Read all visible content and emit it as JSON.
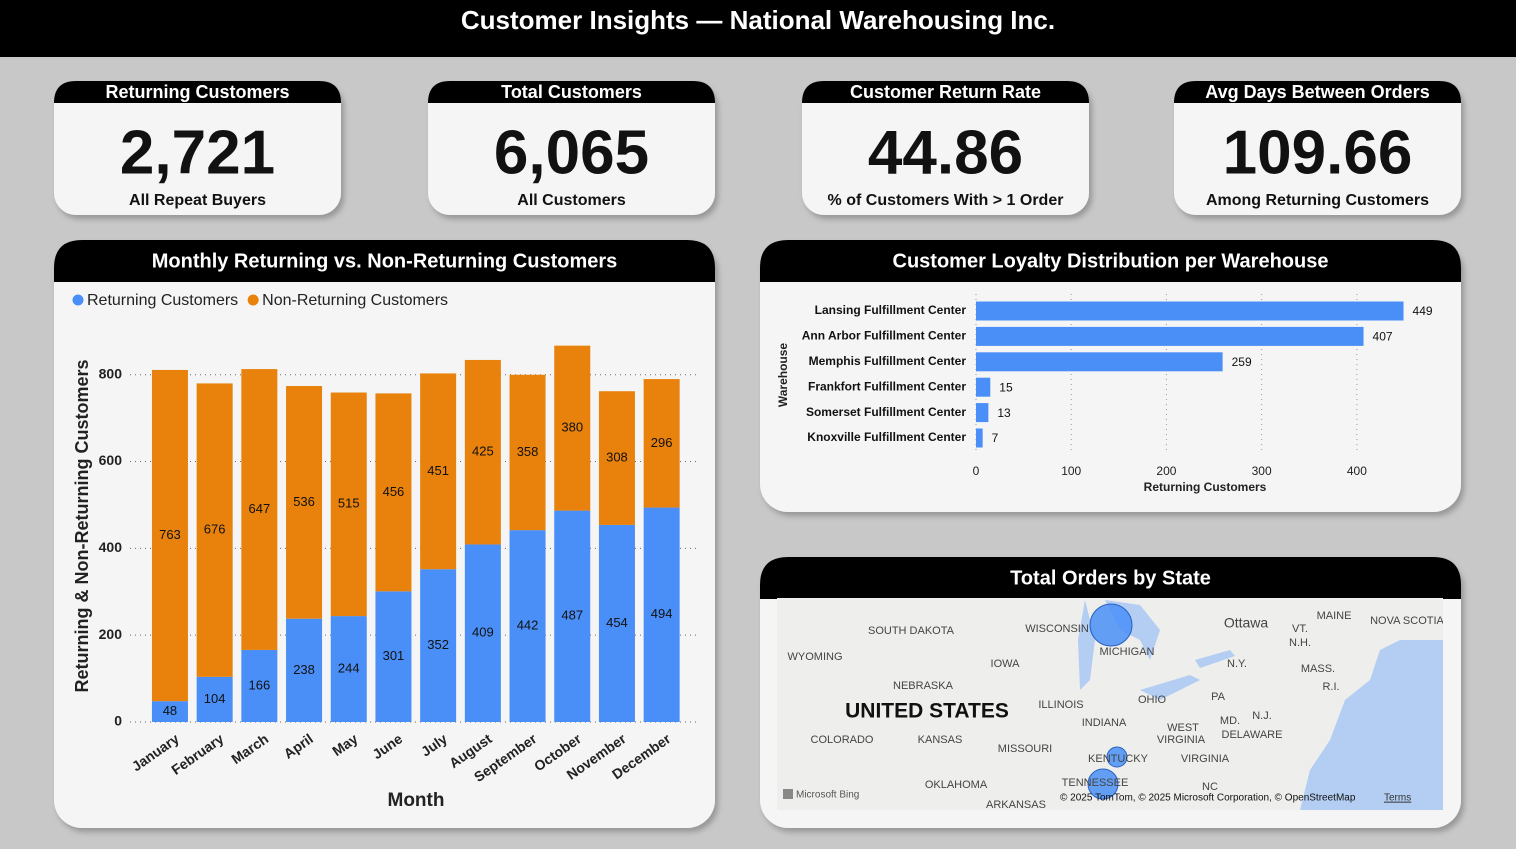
{
  "header": {
    "title": "Customer Insights — National Warehousing Inc."
  },
  "kpis": [
    {
      "title": "Returning Customers",
      "value": "2,721",
      "caption": "All Repeat Buyers"
    },
    {
      "title": "Total Customers",
      "value": "6,065",
      "caption": "All Customers"
    },
    {
      "title": "Customer Return Rate",
      "value": "44.86",
      "caption": "% of Customers With > 1 Order"
    },
    {
      "title": "Avg Days Between Orders",
      "value": "109.66",
      "caption": "Among Returning Customers"
    }
  ],
  "chart_data": [
    {
      "type": "stacked_bar",
      "title": "Monthly Returning vs. Non-Returning Customers",
      "categories": [
        "January",
        "February",
        "March",
        "April",
        "May",
        "June",
        "July",
        "August",
        "September",
        "October",
        "November",
        "December"
      ],
      "series": [
        {
          "name": "Returning Customers",
          "color": "#4a8ff7",
          "values": [
            48,
            104,
            166,
            238,
            244,
            301,
            352,
            409,
            442,
            487,
            454,
            494
          ]
        },
        {
          "name": "Non-Returning Customers",
          "color": "#e8820c",
          "values": [
            763,
            676,
            647,
            536,
            515,
            456,
            451,
            425,
            358,
            380,
            308,
            296
          ]
        }
      ],
      "x_label": "Month",
      "y_label": "Returning & Non-Returning Customers",
      "ylim": [
        0,
        880
      ],
      "yticks": [
        0,
        200,
        400,
        600,
        800
      ],
      "grid": true,
      "legend": "top-left"
    },
    {
      "type": "bar",
      "orientation": "horizontal",
      "title": "Customer Loyalty Distribution per Warehouse",
      "categories": [
        "Lansing Fulfillment Center",
        "Ann Arbor Fulfillment Center",
        "Memphis Fulfillment Center",
        "Frankfort Fulfillment Center",
        "Somerset Fulfillment Center",
        "Knoxville Fulfillment Center"
      ],
      "values": [
        449,
        407,
        259,
        15,
        13,
        7
      ],
      "color": "#4a8ff7",
      "x_label": "Returning Customers",
      "y_label": "Warehouse",
      "xlim": [
        0,
        460
      ],
      "xticks": [
        0,
        100,
        200,
        300,
        400
      ],
      "grid": true
    }
  ],
  "map": {
    "title": "Total Orders by State",
    "labels": [
      "SOUTH DAKOTA",
      "WISCONSIN",
      "MICHIGAN",
      "Ottawa",
      "MAINE",
      "NOVA SCOTIA",
      "VT.",
      "N.H.",
      "WYOMING",
      "IOWA",
      "N.Y.",
      "MASS.",
      "R.I.",
      "NEBRASKA",
      "OHIO",
      "PA",
      "UNITED STATES",
      "ILLINOIS",
      "INDIANA",
      "N.J.",
      "MD.",
      "DELAWARE",
      "WEST",
      "VIRGINIA",
      "COLORADO",
      "KANSAS",
      "MISSOURI",
      "KENTUCKY",
      "VIRGINIA",
      "OKLAHOMA",
      "TENNESSEE",
      "NC",
      "ARKANSAS"
    ],
    "attribution": [
      "Microsoft Bing",
      "© 2025 TomTom, © 2025 Microsoft Corporation, © OpenStreetMap",
      "Terms"
    ]
  }
}
